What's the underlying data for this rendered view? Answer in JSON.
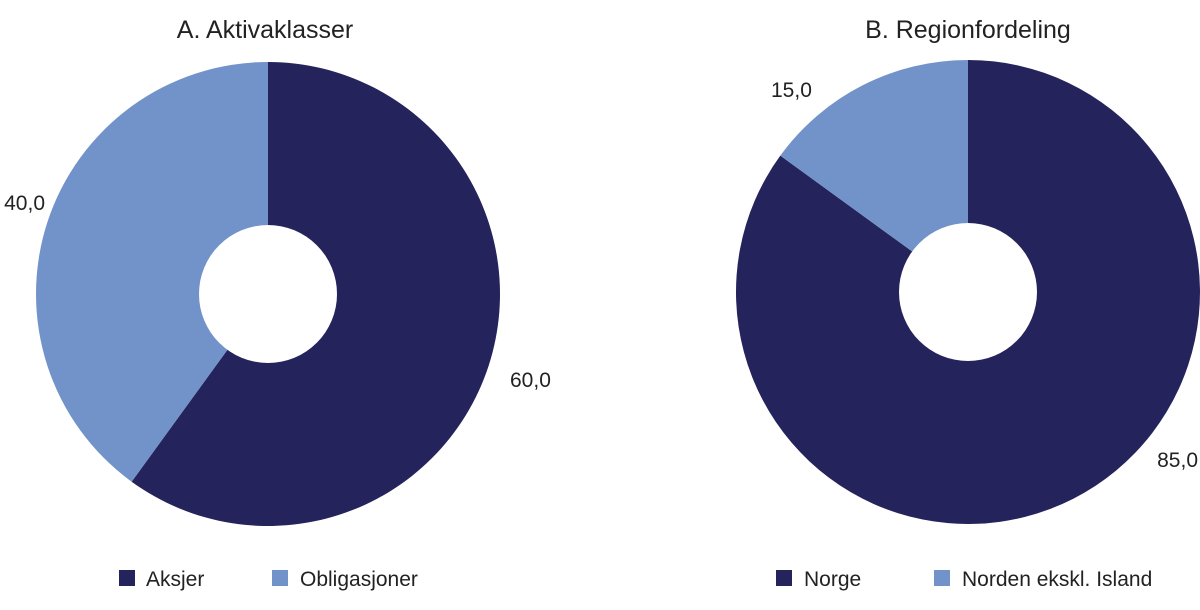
{
  "colors": {
    "dark": "#25235c",
    "light": "#7293c9",
    "hole": "#ffffff"
  },
  "chart_data": [
    {
      "type": "pie",
      "donut": true,
      "title": "A. Aktivaklasser",
      "categories": [
        "Aksjer",
        "Obligasjoner"
      ],
      "values": [
        60.0,
        40.0
      ],
      "data_labels": [
        "60,0",
        "40,0"
      ],
      "legend": {
        "placement": "bottom",
        "entries": [
          "Aksjer",
          "Obligasjoner"
        ]
      }
    },
    {
      "type": "pie",
      "donut": true,
      "title": "B. Regionfordeling",
      "categories": [
        "Norge",
        "Norden ekskl. Island"
      ],
      "values": [
        85.0,
        15.0
      ],
      "data_labels": [
        "85,0",
        "15,0"
      ],
      "legend": {
        "placement": "bottom",
        "entries": [
          "Norge",
          "Norden ekskl. Island"
        ]
      }
    }
  ]
}
